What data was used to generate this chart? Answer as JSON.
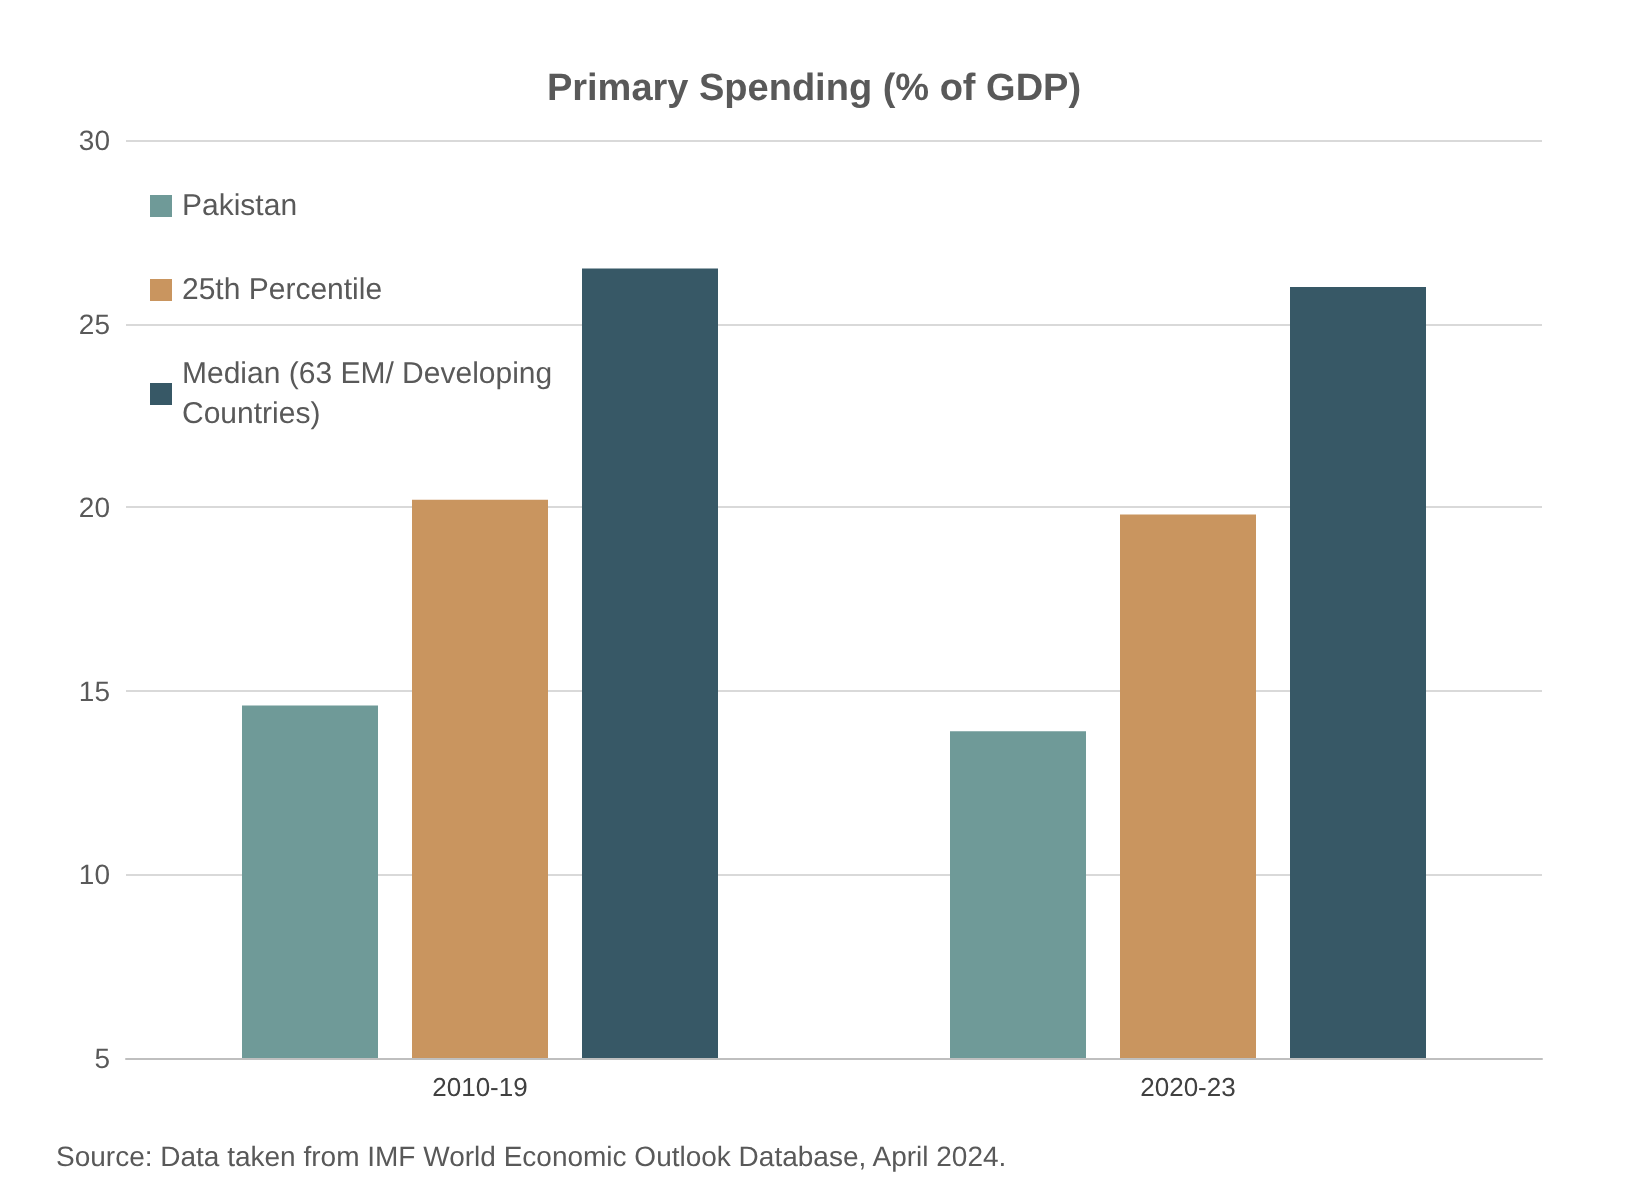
{
  "chart_data": {
    "type": "bar",
    "title": "Primary Spending (% of GDP)",
    "categories": [
      "2010-19",
      "2020-23"
    ],
    "series": [
      {
        "name": "Pakistan",
        "color": "#6f9a98",
        "values": [
          14.6,
          13.9
        ]
      },
      {
        "name": "25th Percentile",
        "color": "#c9955f",
        "values": [
          20.2,
          19.8
        ]
      },
      {
        "name": "Median (63 EM/ Developing Countries)",
        "color": "#375866",
        "values": [
          26.5,
          26.0
        ]
      }
    ],
    "ylim": [
      5,
      30
    ],
    "yticks": [
      5,
      10,
      15,
      20,
      25,
      30
    ],
    "grid": "y",
    "legend": "top left",
    "annotations": [
      "Source: Data taken from IMF World Economic Outlook Database, April 2024."
    ]
  }
}
